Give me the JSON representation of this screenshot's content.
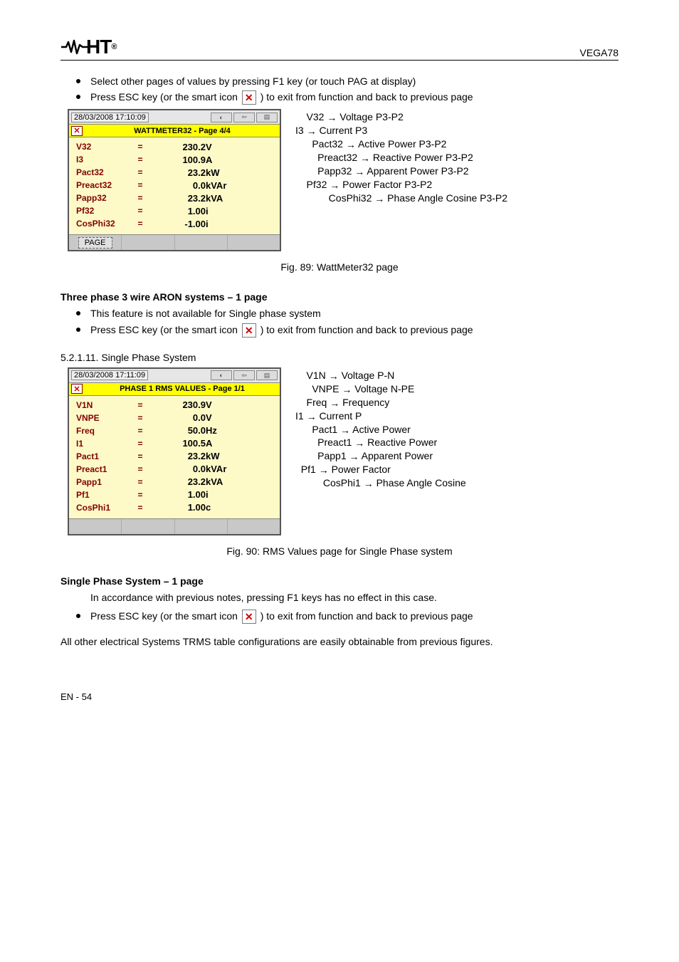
{
  "header": {
    "right": "VEGA78"
  },
  "bullets": {
    "b1": "Select other pages of values by pressing F1 key (or touch PAG at display)",
    "b2_pre": "Press ESC key (or the smart icon ",
    "b2_post": ") to exit from function and back to previous page"
  },
  "panel1": {
    "date": "28/03/2008 17:10:09",
    "title": "WATTMETER32 - Page 4/4",
    "rows": [
      {
        "label": "V32",
        "num": "230.2",
        "unit": "V"
      },
      {
        "label": "I3",
        "num": "100.9",
        "unit": "A"
      },
      {
        "label": "Pact32",
        "num": "23.2",
        "unit": "kW"
      },
      {
        "label": "Preact32",
        "num": "0.0",
        "unit": "kVAr"
      },
      {
        "label": "Papp32",
        "num": "23.2",
        "unit": "kVA"
      },
      {
        "label": "Pf32",
        "num": "1.00",
        "unit": "i"
      },
      {
        "label": "CosPhi32",
        "num": "-1.00",
        "unit": "i"
      }
    ],
    "page_btn": "PAGE"
  },
  "legend1": [
    {
      "indent": 2,
      "label": "V32",
      "desc": "Voltage P3-P2"
    },
    {
      "indent": 0,
      "label": "I3",
      "desc": "Current P3"
    },
    {
      "indent": 3,
      "label": "Pact32",
      "desc": "Active Power P3-P2"
    },
    {
      "indent": 4,
      "label": "Preact32",
      "desc": "Reactive Power P3-P2"
    },
    {
      "indent": 4,
      "label": "Papp32",
      "desc": "Apparent Power P3-P2"
    },
    {
      "indent": 2,
      "label": "Pf32",
      "desc": "Power Factor P3-P2"
    },
    {
      "indent": 6,
      "label": "CosPhi32",
      "desc": "Phase Angle Cosine P3-P2"
    }
  ],
  "caption1": "Fig. 89: WattMeter32 page",
  "section1": {
    "heading": "Three phase 3 wire ARON systems – 1 page",
    "b1": "This feature is not available for Single phase system",
    "b2_pre": "Press ESC key (or the smart icon ",
    "b2_post": ") to exit from function and back to previous page"
  },
  "numlist": "5.2.1.11.      Single Phase System",
  "panel2": {
    "date": "28/03/2008 17:11:09",
    "title": "PHASE 1 RMS VALUES - Page 1/1",
    "rows": [
      {
        "label": "V1N",
        "num": "230.9",
        "unit": "V"
      },
      {
        "label": "VNPE",
        "num": "0.0",
        "unit": "V"
      },
      {
        "label": "Freq",
        "num": "50.0",
        "unit": "Hz"
      },
      {
        "label": "I1",
        "num": "100.5",
        "unit": "A"
      },
      {
        "label": "Pact1",
        "num": "23.2",
        "unit": "kW"
      },
      {
        "label": "Preact1",
        "num": "0.0",
        "unit": "kVAr"
      },
      {
        "label": "Papp1",
        "num": "23.2",
        "unit": "kVA"
      },
      {
        "label": "Pf1",
        "num": "1.00",
        "unit": "i"
      },
      {
        "label": "CosPhi1",
        "num": "1.00",
        "unit": "c"
      }
    ]
  },
  "legend2": [
    {
      "indent": 2,
      "label": "V1N",
      "desc": "Voltage P-N"
    },
    {
      "indent": 3,
      "label": "VNPE",
      "desc": "Voltage N-PE"
    },
    {
      "indent": 2,
      "label": "Freq",
      "desc": "Frequency"
    },
    {
      "indent": 0,
      "label": "I1",
      "desc": "Current P"
    },
    {
      "indent": 3,
      "label": "Pact1",
      "desc": "Active Power"
    },
    {
      "indent": 4,
      "label": "Preact1",
      "desc": "Reactive Power"
    },
    {
      "indent": 4,
      "label": "Papp1",
      "desc": "Apparent Power"
    },
    {
      "indent": 1,
      "label": "Pf1",
      "desc": "Power Factor"
    },
    {
      "indent": 5,
      "label": "CosPhi1",
      "desc": "Phase Angle Cosine"
    }
  ],
  "caption2": "Fig. 90: RMS Values page for Single Phase system",
  "section2": {
    "heading": "Single Phase System – 1 page",
    "text1": "In accordance with previous notes, pressing F1 keys has no effect in this case.",
    "b1_pre": "Press ESC key (or the smart icon ",
    "b1_post": ") to exit from function and back to previous page",
    "text2": "All other electrical Systems TRMS table configurations are easily obtainable from previous figures."
  },
  "footer": {
    "left": "EN - 54"
  }
}
